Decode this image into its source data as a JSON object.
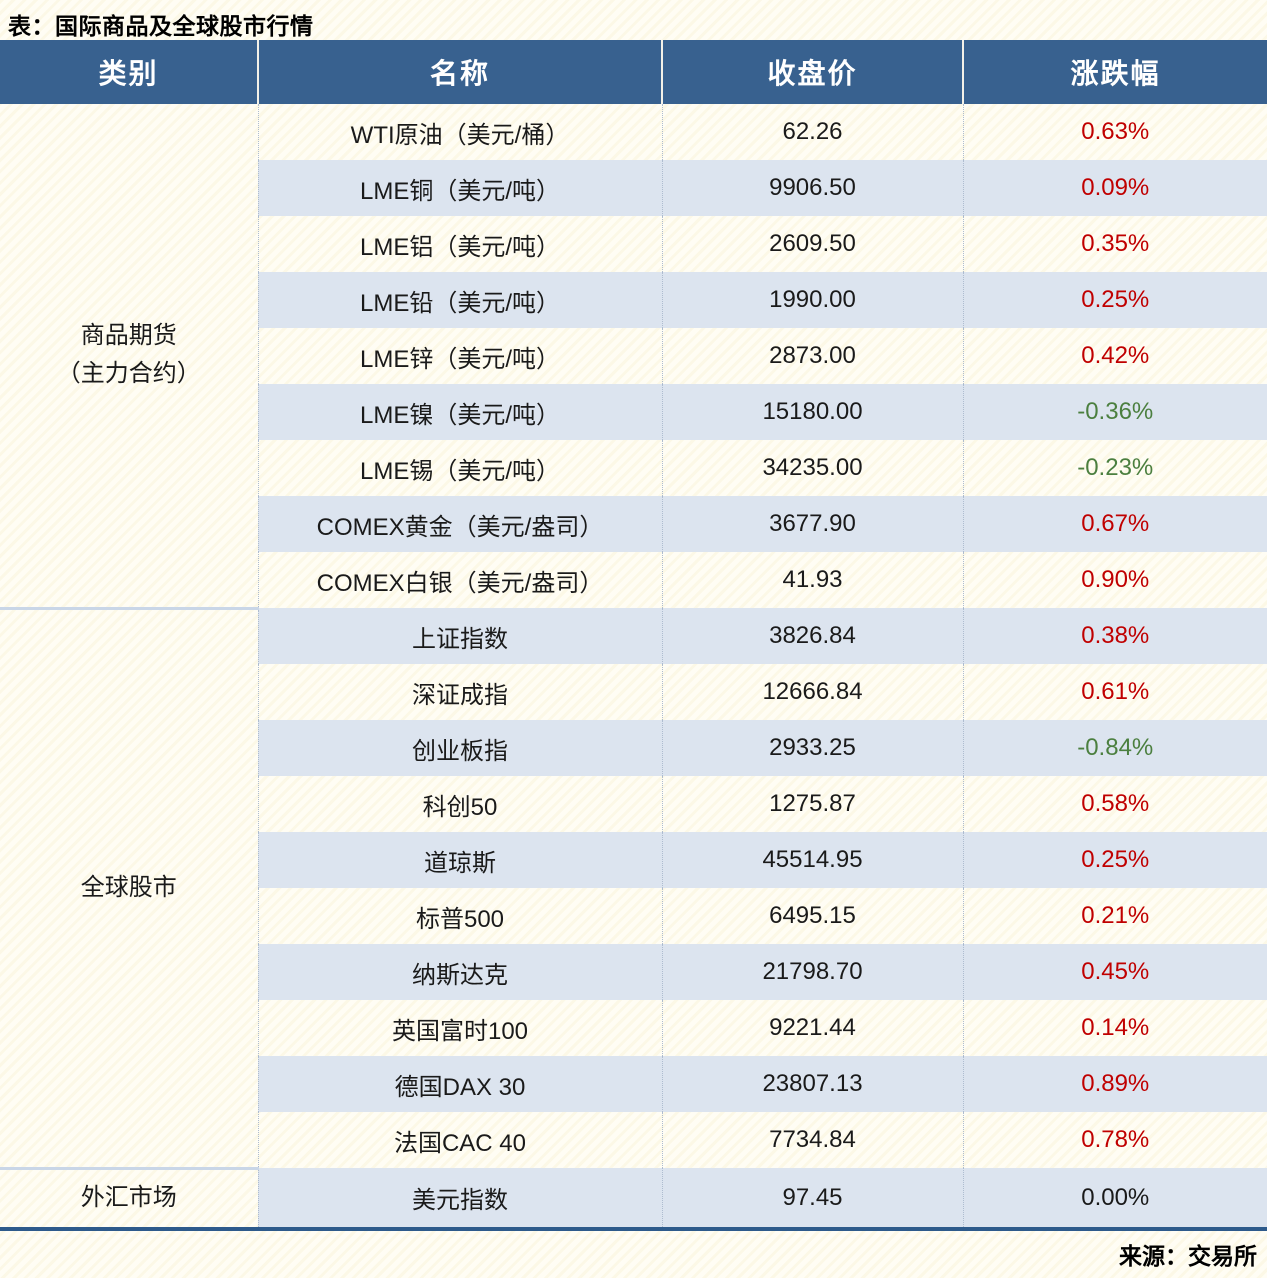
{
  "page": {
    "title": "表：国际商品及全球股市行情",
    "source": "来源：交易所"
  },
  "colors": {
    "header_bg": "#38618f",
    "alt_row_bg": "#dce4ef",
    "up_red": "#c00000",
    "down_green": "#4b7f3f",
    "flat_black": "#1a1a1a",
    "page_bg": "#fffdf4",
    "bottom_border": "#2d5a8b",
    "group_divider": "#c9d6e7"
  },
  "chart_data": {
    "type": "table",
    "title": "表：国际商品及全球股市行情",
    "source": "来源：交易所",
    "columns": [
      "类别",
      "名称",
      "收盘价",
      "涨跌幅"
    ],
    "groups": [
      {
        "category": "商品期货（主力合约）",
        "category_lines": [
          "商品期货",
          "（主力合约）"
        ],
        "rows": [
          {
            "name": "WTI原油（美元/桶）",
            "close": "62.26",
            "change": "0.63%",
            "direction": "up"
          },
          {
            "name": "LME铜（美元/吨）",
            "close": "9906.50",
            "change": "0.09%",
            "direction": "up"
          },
          {
            "name": "LME铝（美元/吨）",
            "close": "2609.50",
            "change": "0.35%",
            "direction": "up"
          },
          {
            "name": "LME铅（美元/吨）",
            "close": "1990.00",
            "change": "0.25%",
            "direction": "up"
          },
          {
            "name": "LME锌（美元/吨）",
            "close": "2873.00",
            "change": "0.42%",
            "direction": "up"
          },
          {
            "name": "LME镍（美元/吨）",
            "close": "15180.00",
            "change": "-0.36%",
            "direction": "down"
          },
          {
            "name": "LME锡（美元/吨）",
            "close": "34235.00",
            "change": "-0.23%",
            "direction": "down"
          },
          {
            "name": "COMEX黄金（美元/盎司）",
            "close": "3677.90",
            "change": "0.67%",
            "direction": "up"
          },
          {
            "name": "COMEX白银（美元/盎司）",
            "close": "41.93",
            "change": "0.90%",
            "direction": "up"
          }
        ]
      },
      {
        "category": "全球股市",
        "category_lines": [
          "全球股市"
        ],
        "rows": [
          {
            "name": "上证指数",
            "close": "3826.84",
            "change": "0.38%",
            "direction": "up"
          },
          {
            "name": "深证成指",
            "close": "12666.84",
            "change": "0.61%",
            "direction": "up"
          },
          {
            "name": "创业板指",
            "close": "2933.25",
            "change": "-0.84%",
            "direction": "down"
          },
          {
            "name": "科创50",
            "close": "1275.87",
            "change": "0.58%",
            "direction": "up"
          },
          {
            "name": "道琼斯",
            "close": "45514.95",
            "change": "0.25%",
            "direction": "up"
          },
          {
            "name": "标普500",
            "close": "6495.15",
            "change": "0.21%",
            "direction": "up"
          },
          {
            "name": "纳斯达克",
            "close": "21798.70",
            "change": "0.45%",
            "direction": "up"
          },
          {
            "name": "英国富时100",
            "close": "9221.44",
            "change": "0.14%",
            "direction": "up"
          },
          {
            "name": "德国DAX 30",
            "close": "23807.13",
            "change": "0.89%",
            "direction": "up"
          },
          {
            "name": "法国CAC 40",
            "close": "7734.84",
            "change": "0.78%",
            "direction": "up"
          }
        ]
      },
      {
        "category": "外汇市场",
        "category_lines": [
          "外汇市场"
        ],
        "rows": [
          {
            "name": "美元指数",
            "close": "97.45",
            "change": "0.00%",
            "direction": "flat"
          }
        ]
      }
    ]
  }
}
